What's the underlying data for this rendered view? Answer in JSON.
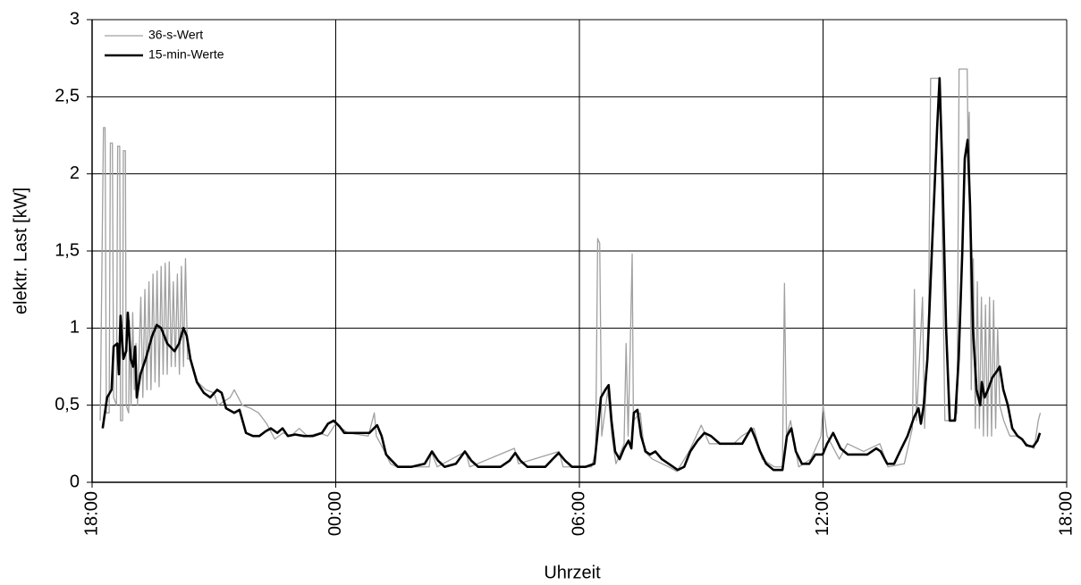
{
  "chart_data": {
    "type": "line",
    "ylabel": "elektr. Last [kW]",
    "xlabel": "Uhrzeit",
    "xlim": [
      0,
      24
    ],
    "xticks": [
      {
        "value": 0,
        "label": "18:00"
      },
      {
        "value": 6,
        "label": "00:00"
      },
      {
        "value": 12,
        "label": "06:00"
      },
      {
        "value": 18,
        "label": "12:00"
      },
      {
        "value": 24,
        "label": "18:00"
      }
    ],
    "ylim": [
      0,
      3
    ],
    "yticks": [
      0,
      {
        "value": 0.5,
        "label": "0,5"
      },
      1,
      {
        "value": 1.5,
        "label": "1,5"
      },
      2,
      {
        "value": 2.5,
        "label": "2,5"
      },
      3
    ],
    "grid": true,
    "legend": "upper left",
    "series": [
      {
        "name": "36-s-Wert",
        "color": "#a0a0a0",
        "x": [
          0.2,
          0.28,
          0.32,
          0.35,
          0.42,
          0.45,
          0.5,
          0.53,
          0.6,
          0.63,
          0.68,
          0.7,
          0.75,
          0.77,
          0.82,
          0.84,
          0.9,
          0.92,
          0.96,
          1.0,
          1.04,
          1.08,
          1.12,
          1.2,
          1.25,
          1.3,
          1.35,
          1.4,
          1.45,
          1.5,
          1.55,
          1.6,
          1.65,
          1.7,
          1.75,
          1.8,
          1.85,
          1.9,
          1.95,
          2.0,
          2.05,
          2.1,
          2.15,
          2.2,
          2.25,
          2.3,
          2.35,
          2.42,
          2.6,
          2.8,
          3.0,
          3.1,
          3.4,
          3.5,
          3.7,
          3.9,
          4.1,
          4.3,
          4.5,
          4.7,
          4.9,
          5.1,
          5.3,
          5.6,
          5.8,
          6.0,
          6.3,
          6.8,
          6.95,
          7.0,
          7.2,
          7.35,
          7.5,
          8.3,
          8.35,
          8.5,
          9.2,
          9.3,
          10.4,
          10.5,
          11.5,
          11.6,
          12.3,
          12.4,
          12.45,
          12.5,
          12.55,
          12.7,
          12.8,
          12.9,
          13.1,
          13.15,
          13.2,
          13.25,
          13.3,
          13.33,
          13.5,
          13.6,
          13.8,
          14.2,
          14.4,
          14.7,
          15.0,
          15.2,
          15.8,
          16.0,
          16.3,
          16.5,
          16.8,
          17.0,
          17.05,
          17.1,
          17.2,
          17.4,
          17.7,
          17.95,
          18.0,
          18.1,
          18.4,
          18.6,
          19.0,
          19.4,
          19.6,
          20.0,
          20.2,
          20.25,
          20.3,
          20.45,
          20.5,
          20.6,
          20.65,
          20.85,
          20.9,
          21.0,
          21.2,
          21.3,
          21.35,
          21.55,
          21.57,
          21.6,
          21.65,
          21.7,
          21.75,
          21.8,
          21.85,
          21.9,
          21.95,
          22.0,
          22.05,
          22.1,
          22.15,
          22.2,
          22.25,
          22.3,
          22.35,
          22.45,
          22.6,
          22.8,
          23.0,
          23.2,
          23.3,
          23.35
        ],
        "values": [
          0.4,
          2.3,
          2.3,
          0.45,
          0.45,
          2.2,
          2.2,
          0.55,
          0.5,
          2.18,
          2.18,
          0.4,
          0.4,
          2.15,
          2.15,
          0.5,
          0.45,
          1.05,
          0.5,
          1.1,
          0.6,
          0.9,
          0.5,
          1.2,
          0.55,
          1.25,
          0.6,
          1.3,
          0.6,
          1.35,
          0.65,
          1.37,
          0.62,
          1.4,
          0.7,
          1.42,
          0.7,
          1.43,
          0.75,
          1.3,
          0.75,
          1.35,
          0.7,
          1.4,
          0.75,
          1.45,
          0.8,
          0.8,
          0.65,
          0.6,
          0.58,
          0.5,
          0.55,
          0.6,
          0.5,
          0.48,
          0.45,
          0.38,
          0.28,
          0.32,
          0.3,
          0.35,
          0.3,
          0.32,
          0.3,
          0.38,
          0.32,
          0.3,
          0.45,
          0.3,
          0.2,
          0.12,
          0.1,
          0.1,
          0.2,
          0.1,
          0.2,
          0.1,
          0.22,
          0.12,
          0.2,
          0.1,
          0.1,
          0.2,
          1.58,
          1.55,
          0.3,
          0.6,
          0.3,
          0.12,
          0.25,
          0.9,
          0.3,
          0.85,
          1.48,
          0.4,
          0.45,
          0.2,
          0.15,
          0.1,
          0.07,
          0.2,
          0.37,
          0.25,
          0.25,
          0.3,
          0.35,
          0.15,
          0.1,
          0.1,
          1.29,
          0.3,
          0.4,
          0.1,
          0.15,
          0.3,
          0.5,
          0.3,
          0.15,
          0.25,
          0.2,
          0.25,
          0.1,
          0.12,
          0.35,
          1.25,
          0.4,
          1.2,
          0.35,
          1.1,
          2.62,
          2.62,
          2.3,
          0.4,
          0.4,
          0.45,
          2.68,
          2.68,
          2.18,
          2.4,
          0.6,
          1.45,
          0.35,
          1.3,
          0.35,
          1.2,
          0.3,
          1.15,
          0.3,
          1.2,
          0.3,
          1.18,
          0.35,
          1.0,
          0.5,
          0.4,
          0.3,
          0.3,
          0.25,
          0.22,
          0.4,
          0.45
        ]
      },
      {
        "name": "15-min-Werte",
        "color": "#000000",
        "x": [
          0.26,
          0.37,
          0.48,
          0.53,
          0.62,
          0.66,
          0.7,
          0.77,
          0.84,
          0.88,
          0.95,
          1.01,
          1.06,
          1.1,
          1.19,
          1.32,
          1.48,
          1.59,
          1.7,
          1.85,
          2.03,
          2.14,
          2.25,
          2.33,
          2.42,
          2.58,
          2.75,
          2.91,
          3.08,
          3.19,
          3.3,
          3.5,
          3.63,
          3.79,
          3.96,
          4.12,
          4.27,
          4.4,
          4.56,
          4.69,
          4.82,
          5.0,
          5.22,
          5.44,
          5.66,
          5.81,
          5.95,
          6.1,
          6.21,
          6.43,
          6.65,
          6.83,
          6.94,
          7.02,
          7.13,
          7.24,
          7.38,
          7.53,
          7.86,
          8.19,
          8.37,
          8.52,
          8.68,
          8.96,
          9.18,
          9.34,
          9.51,
          10.06,
          10.28,
          10.42,
          10.55,
          10.72,
          11.16,
          11.34,
          11.49,
          11.65,
          11.82,
          12.15,
          12.37,
          12.44,
          12.53,
          12.64,
          12.72,
          12.79,
          12.88,
          12.99,
          13.1,
          13.21,
          13.28,
          13.34,
          13.43,
          13.52,
          13.63,
          13.74,
          13.87,
          14.03,
          14.2,
          14.42,
          14.58,
          14.73,
          14.91,
          15.08,
          15.24,
          15.46,
          15.79,
          16.01,
          16.12,
          16.23,
          16.34,
          16.45,
          16.6,
          16.78,
          17.0,
          17.11,
          17.22,
          17.33,
          17.48,
          17.66,
          17.81,
          17.99,
          18.1,
          18.25,
          18.43,
          18.61,
          18.87,
          19.09,
          19.31,
          19.42,
          19.58,
          19.75,
          19.93,
          20.08,
          20.24,
          20.35,
          20.41,
          20.48,
          20.57,
          20.68,
          20.81,
          20.87,
          20.94,
          21.03,
          21.12,
          21.25,
          21.34,
          21.43,
          21.49,
          21.56,
          21.62,
          21.69,
          21.78,
          21.87,
          21.91,
          21.98,
          22.06,
          22.17,
          22.28,
          22.35,
          22.44,
          22.55,
          22.66,
          22.79,
          22.9,
          23.01,
          23.17,
          23.28,
          23.34
        ],
        "values": [
          0.35,
          0.55,
          0.6,
          0.88,
          0.9,
          0.7,
          1.08,
          0.8,
          0.85,
          1.1,
          0.8,
          0.75,
          0.88,
          0.55,
          0.7,
          0.8,
          0.95,
          1.02,
          1.0,
          0.9,
          0.85,
          0.9,
          1.0,
          0.95,
          0.8,
          0.65,
          0.58,
          0.55,
          0.6,
          0.58,
          0.48,
          0.45,
          0.47,
          0.32,
          0.3,
          0.3,
          0.33,
          0.35,
          0.32,
          0.35,
          0.3,
          0.31,
          0.3,
          0.3,
          0.32,
          0.38,
          0.4,
          0.36,
          0.32,
          0.32,
          0.32,
          0.32,
          0.35,
          0.37,
          0.3,
          0.18,
          0.14,
          0.1,
          0.1,
          0.12,
          0.2,
          0.14,
          0.1,
          0.12,
          0.2,
          0.14,
          0.1,
          0.1,
          0.14,
          0.19,
          0.14,
          0.1,
          0.1,
          0.15,
          0.19,
          0.14,
          0.1,
          0.1,
          0.12,
          0.3,
          0.55,
          0.6,
          0.63,
          0.4,
          0.2,
          0.15,
          0.22,
          0.27,
          0.22,
          0.45,
          0.47,
          0.3,
          0.2,
          0.18,
          0.2,
          0.15,
          0.12,
          0.08,
          0.1,
          0.2,
          0.27,
          0.32,
          0.3,
          0.25,
          0.25,
          0.25,
          0.3,
          0.35,
          0.28,
          0.2,
          0.12,
          0.08,
          0.08,
          0.3,
          0.35,
          0.2,
          0.12,
          0.12,
          0.18,
          0.18,
          0.25,
          0.32,
          0.22,
          0.18,
          0.18,
          0.18,
          0.22,
          0.2,
          0.12,
          0.12,
          0.22,
          0.3,
          0.42,
          0.48,
          0.38,
          0.5,
          0.8,
          1.5,
          2.3,
          2.62,
          2.0,
          1.0,
          0.4,
          0.4,
          0.8,
          1.5,
          2.1,
          2.22,
          1.8,
          1.0,
          0.6,
          0.5,
          0.65,
          0.55,
          0.6,
          0.68,
          0.72,
          0.75,
          0.6,
          0.5,
          0.35,
          0.3,
          0.28,
          0.24,
          0.23,
          0.27,
          0.32
        ]
      }
    ]
  }
}
